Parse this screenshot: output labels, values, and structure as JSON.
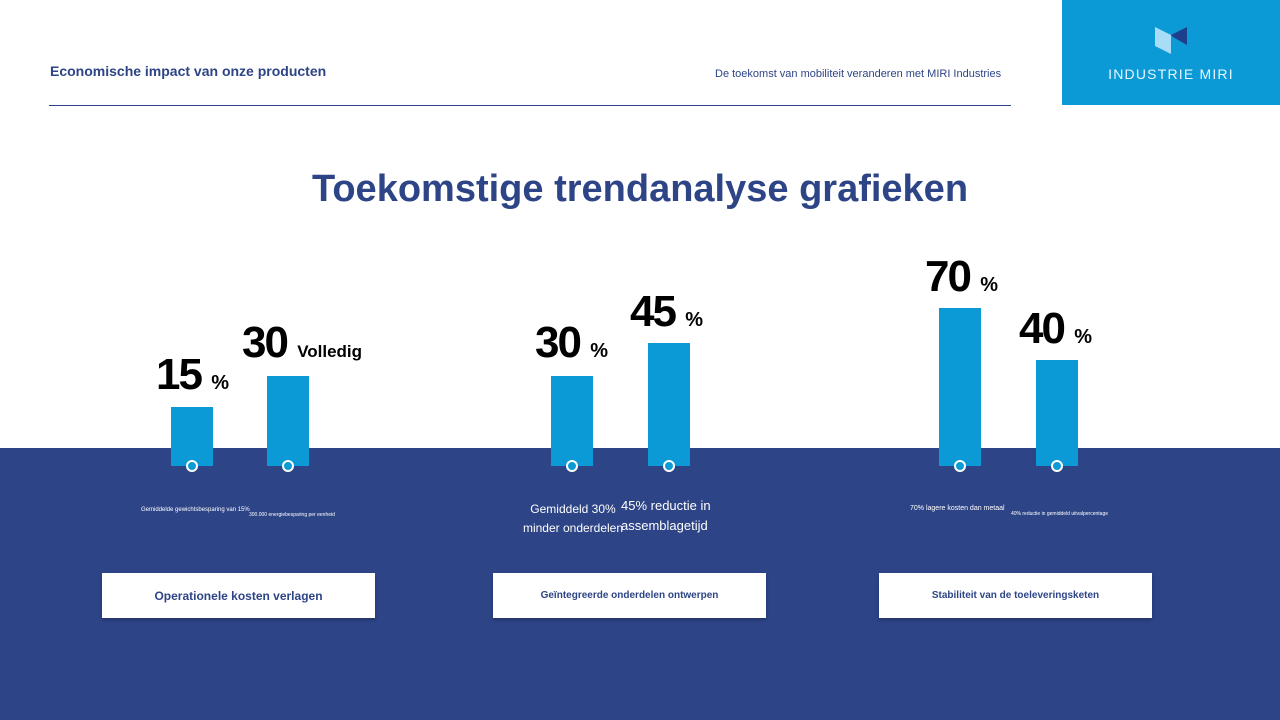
{
  "header": {
    "title": "Economische impact van onze producten",
    "subtitle": "De toekomst van mobiliteit veranderen met MIRI Industries"
  },
  "logo": {
    "text": "INDUSTRIE MIRI",
    "icon": "miri-logo-icon"
  },
  "main_title": "Toekomstige trendanalyse grafieken",
  "colors": {
    "bar": "#0b9ad6",
    "navy": "#2d4486"
  },
  "groups": [
    {
      "bars": [
        {
          "value": "15",
          "unit": "%",
          "caption": "Gemiddelde gewichtsbesparing van 15%"
        },
        {
          "value": "30",
          "unit": "Volledig",
          "caption": "300.000 energiebesparing per eenheid"
        }
      ],
      "button": "Operationele kosten verlagen"
    },
    {
      "bars": [
        {
          "value": "30",
          "unit": "%",
          "caption": "Gemiddeld 30% minder onderdelen"
        },
        {
          "value": "45",
          "unit": "%",
          "caption": "45% reductie in assemblagetijd"
        }
      ],
      "button": "Geïntegreerde onderdelen ontwerpen"
    },
    {
      "bars": [
        {
          "value": "70",
          "unit": "%",
          "caption": "70% lagere kosten dan metaal"
        },
        {
          "value": "40",
          "unit": "%",
          "caption": "40% reductie in gemiddeld uitvalpercentage"
        }
      ],
      "button": "Stabiliteit van de toeleveringsketen"
    }
  ]
}
